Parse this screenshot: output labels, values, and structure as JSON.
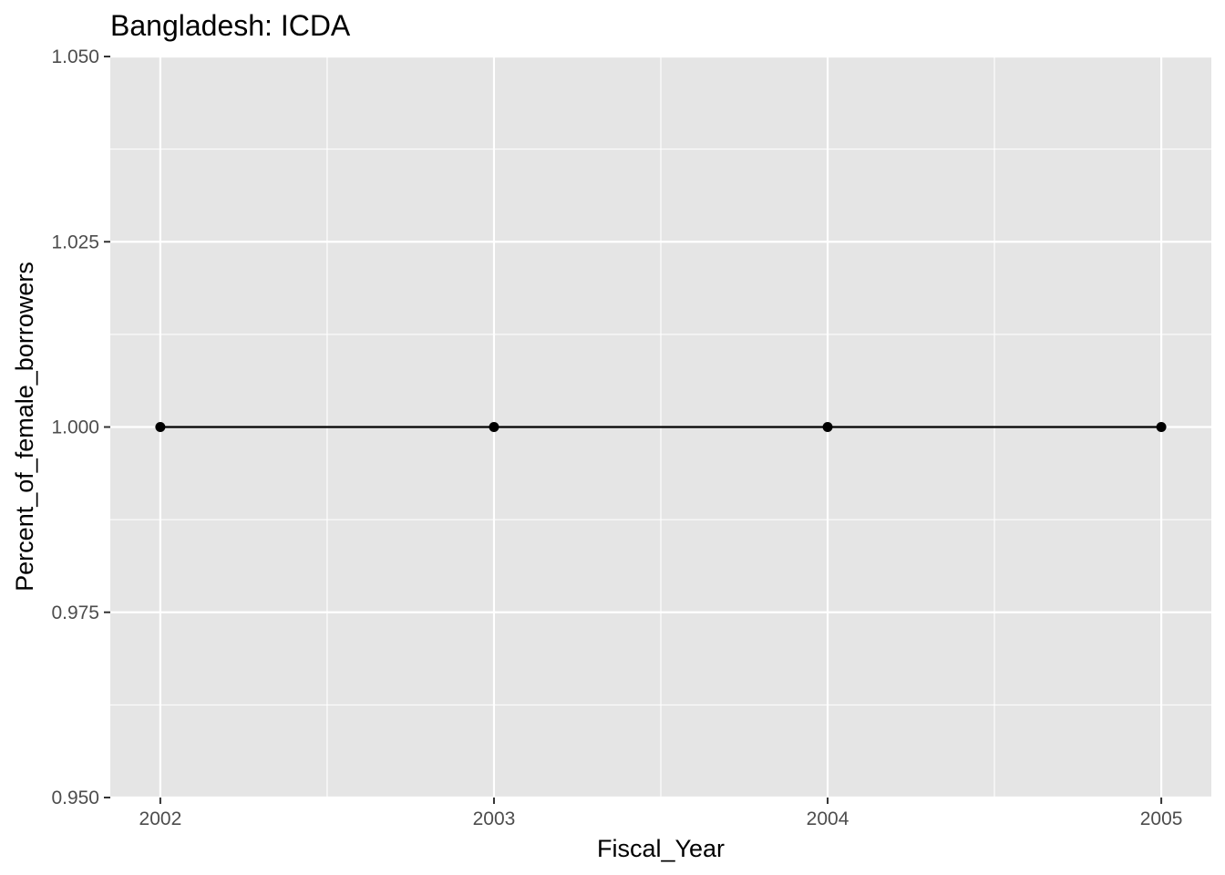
{
  "chart_data": {
    "type": "line",
    "title": "Bangladesh:  ICDA",
    "xlabel": "Fiscal_Year",
    "ylabel": "Percent_of_female_borrowers",
    "x": [
      2002,
      2003,
      2004,
      2005
    ],
    "series": [
      {
        "values": [
          1.0,
          1.0,
          1.0,
          1.0
        ]
      }
    ],
    "xlim": [
      2001.85,
      2005.15
    ],
    "ylim": [
      0.95,
      1.05
    ],
    "x_ticks": [
      2002,
      2003,
      2004,
      2005
    ],
    "x_tick_labels": [
      "2002",
      "2003",
      "2004",
      "2005"
    ],
    "y_ticks": [
      0.95,
      0.975,
      1.0,
      1.025,
      1.05
    ],
    "y_tick_labels": [
      "0.950",
      "0.975",
      "1.000",
      "1.025",
      "1.050"
    ],
    "grid": true,
    "legend": "none",
    "colors": {
      "panel_background": "#e5e5e5",
      "grid": "#ffffff",
      "line": "#000000",
      "tick_text": "#4d4d4d",
      "tick_mark": "#333333"
    }
  }
}
